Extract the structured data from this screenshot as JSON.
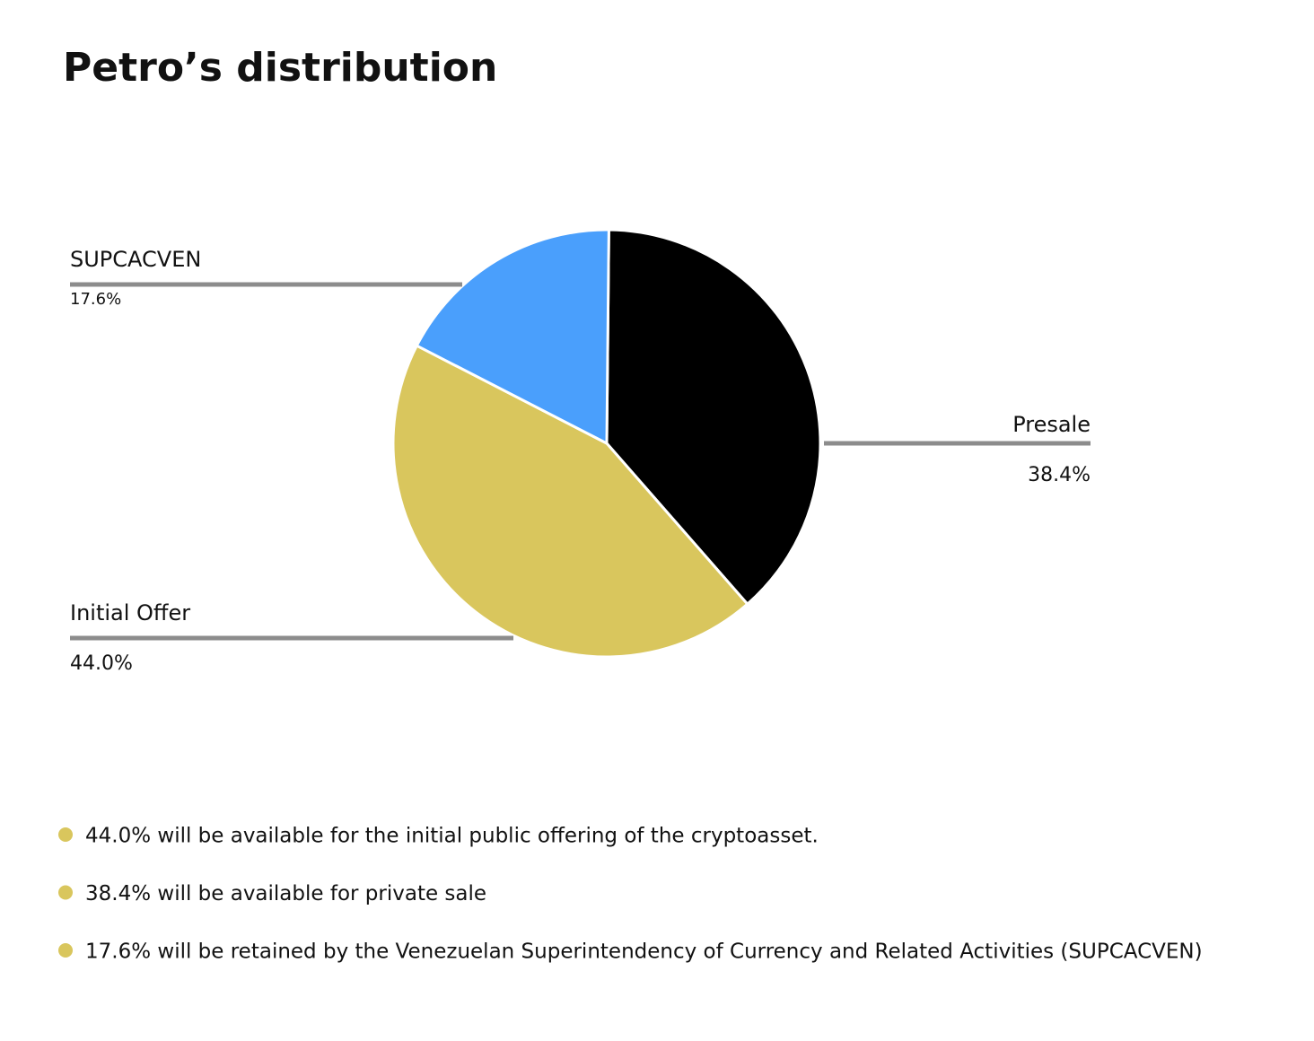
{
  "chart_data": {
    "type": "pie",
    "title": "Petro’s distribution",
    "categories": [
      "Presale",
      "Initial Offer",
      "SUPCACVEN"
    ],
    "values": [
      38.4,
      44.0,
      17.6
    ],
    "value_labels": [
      "38.4%",
      "44.0%",
      "17.6%"
    ],
    "colors": [
      "#000000",
      "#d9c65d",
      "#4a9ffc"
    ]
  },
  "notes": [
    "44.0% will be available for the initial public offering of the cryptoasset.",
    "38.4% will be available for private sale",
    "17.6% will be retained by the Venezuelan Superintendency of Currency and Related Activities (SUPCACVEN)"
  ]
}
